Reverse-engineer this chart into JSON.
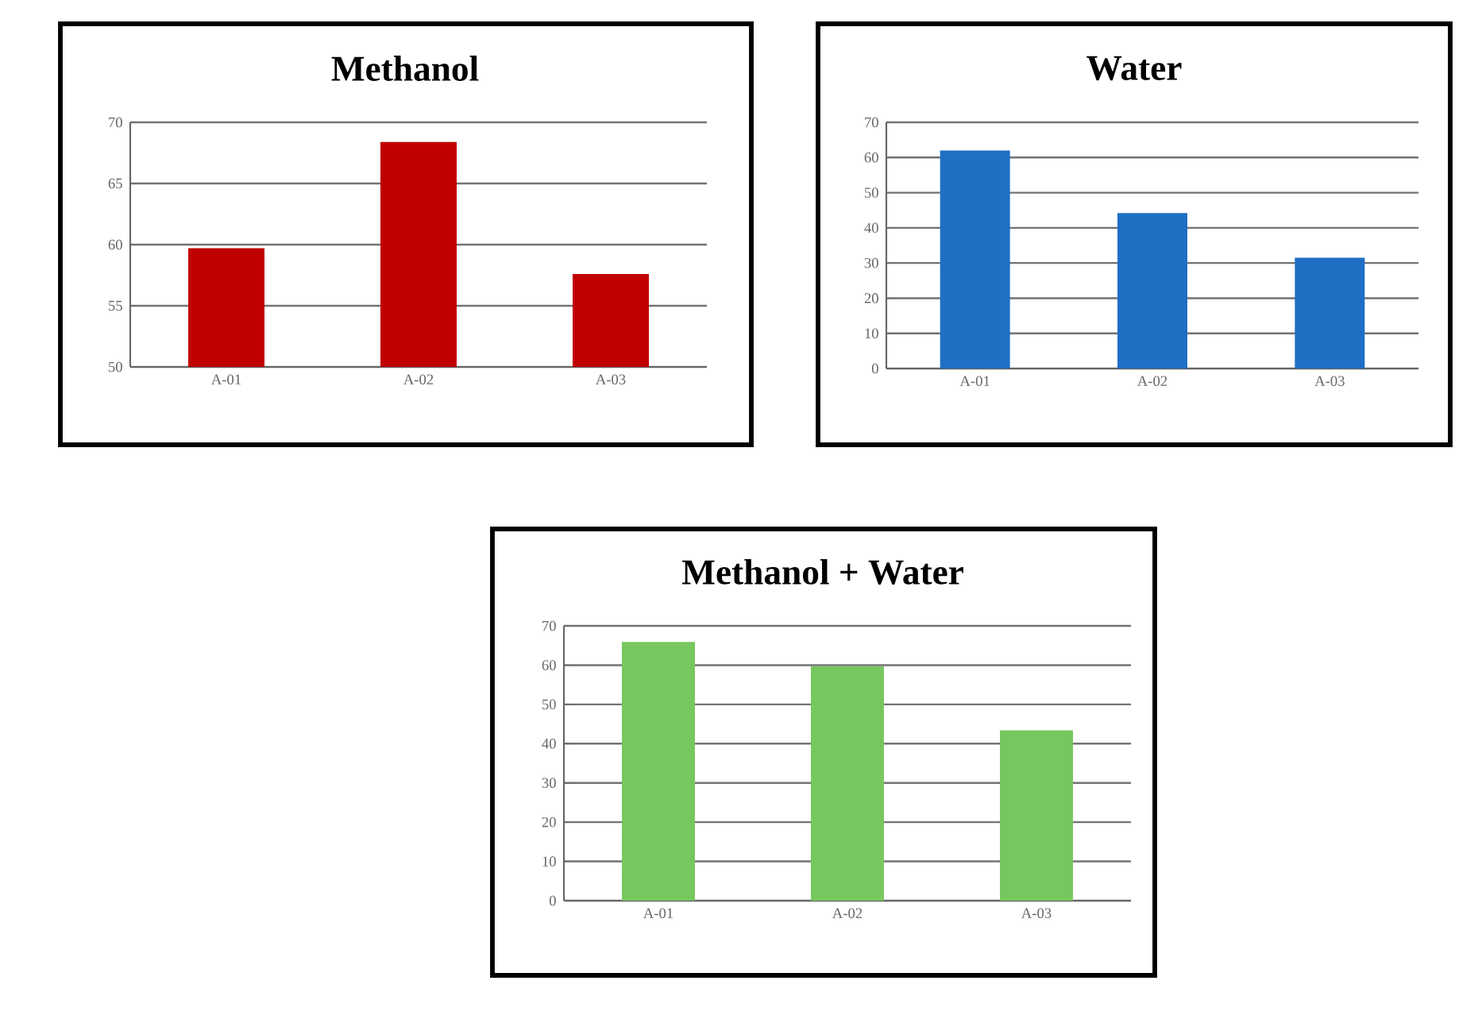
{
  "chart_data": [
    {
      "type": "bar",
      "title": "Methanol",
      "categories": [
        "A-01",
        "A-02",
        "A-03"
      ],
      "values": [
        59.7,
        68.4,
        57.6
      ],
      "color": "#c00000",
      "ylim": [
        50,
        70
      ],
      "yticks": [
        50,
        55,
        60,
        65,
        70
      ],
      "grid": "y"
    },
    {
      "type": "bar",
      "title": "Water",
      "categories": [
        "A-01",
        "A-02",
        "A-03"
      ],
      "values": [
        62,
        44.2,
        31.5
      ],
      "color": "#1f6fc5",
      "ylim": [
        0,
        70
      ],
      "yticks": [
        0,
        10,
        20,
        30,
        40,
        50,
        60,
        70
      ],
      "grid": "y"
    },
    {
      "type": "bar",
      "title": "Methanol + Water",
      "categories": [
        "A-01",
        "A-02",
        "A-03"
      ],
      "values": [
        65.9,
        59.7,
        43.4
      ],
      "color": "#77c75f",
      "ylim": [
        0,
        70
      ],
      "yticks": [
        0,
        10,
        20,
        30,
        40,
        50,
        60,
        70
      ],
      "grid": "y"
    }
  ]
}
